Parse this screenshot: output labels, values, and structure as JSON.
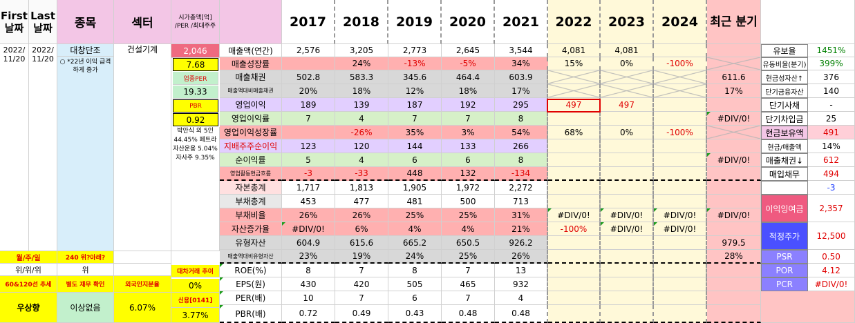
{
  "header": {
    "first": "First 날짜",
    "last": "Last 날짜",
    "item": "종목",
    "sector": "섹터",
    "cap_hdr": "시가총액[억] /PER /최대주주",
    "years": [
      "2017",
      "2018",
      "2019",
      "2020",
      "2021",
      "2022",
      "2023",
      "2024"
    ],
    "recent": "최근 분기"
  },
  "stock": {
    "first_date": "2022/ 11/20",
    "last_date": "2022/ 11/20",
    "name": "대창단조",
    "note": "○ *22년 이익 급격하게 증가",
    "sector": "건설기계",
    "market_cap": "2,046",
    "per": "7.68",
    "industry_per_label": "업종PER",
    "industry_per": "19.33",
    "pbr_label": "PBR",
    "pbr": "0.92",
    "holders": "박안식 외 5인 44.45% 페트라자산운용 5.04% 자사주 9.35%"
  },
  "rows": [
    {
      "label": "매출액(연간)",
      "cells": [
        "2,576",
        "3,205",
        "2,773",
        "2,645",
        "3,544",
        "4,081",
        "4,081",
        "",
        ""
      ]
    },
    {
      "label": "매출성장률",
      "cells": [
        "",
        "24%",
        "-13%",
        "-5%",
        "34%",
        "15%",
        "0%",
        "-100%",
        ""
      ]
    },
    {
      "label": "매출채권",
      "cells": [
        "502.8",
        "583.3",
        "345.6",
        "464.4",
        "603.9",
        "",
        "",
        "",
        "611.6"
      ]
    },
    {
      "label": "매출액대비매출채권",
      "cells": [
        "20%",
        "18%",
        "12%",
        "18%",
        "17%",
        "",
        "",
        "",
        "17%"
      ]
    },
    {
      "label": "영업이익",
      "cells": [
        "189",
        "139",
        "187",
        "192",
        "295",
        "497",
        "497",
        "",
        ""
      ]
    },
    {
      "label": "영업이익률",
      "cells": [
        "7",
        "4",
        "7",
        "7",
        "8",
        "",
        "",
        "",
        "#DIV/0!"
      ]
    },
    {
      "label": "영업이익성장률",
      "cells": [
        "",
        "-26%",
        "35%",
        "3%",
        "54%",
        "68%",
        "0%",
        "-100%",
        ""
      ]
    },
    {
      "label": "지배주주순이익",
      "cells": [
        "123",
        "120",
        "144",
        "133",
        "266",
        "",
        "",
        "",
        ""
      ]
    },
    {
      "label": "순이익률",
      "cells": [
        "5",
        "4",
        "6",
        "6",
        "8",
        "",
        "",
        "",
        "#DIV/0!"
      ]
    },
    {
      "label": "영업활동현금흐름",
      "cells": [
        "-3",
        "-33",
        "448",
        "132",
        "-134",
        "",
        "",
        "",
        ""
      ]
    },
    {
      "label": "자본총계",
      "cells": [
        "1,717",
        "1,813",
        "1,905",
        "1,972",
        "2,272",
        "",
        "",
        "",
        ""
      ]
    },
    {
      "label": "부채총계",
      "cells": [
        "453",
        "477",
        "481",
        "500",
        "713",
        "",
        "",
        "",
        ""
      ]
    },
    {
      "label": "부채비율",
      "cells": [
        "26%",
        "26%",
        "25%",
        "25%",
        "31%",
        "#DIV/0!",
        "#DIV/0!",
        "#DIV/0!",
        "#DIV/0!"
      ]
    },
    {
      "label": "자산증가율",
      "cells": [
        "#DIV/0!",
        "6%",
        "4%",
        "4%",
        "21%",
        "-100%",
        "#DIV/0!",
        "#DIV/0!",
        ""
      ]
    },
    {
      "label": "유형자산",
      "cells": [
        "604.9",
        "615.6",
        "665.2",
        "650.5",
        "926.2",
        "",
        "",
        "",
        "979.5"
      ]
    },
    {
      "label": "매출액대비유형자산",
      "cells": [
        "23%",
        "19%",
        "24%",
        "25%",
        "26%",
        "",
        "",
        "",
        "28%"
      ]
    },
    {
      "label": "ROE(%)",
      "cells": [
        "8",
        "7",
        "8",
        "7",
        "13",
        "",
        "",
        "",
        ""
      ]
    },
    {
      "label": "EPS(원)",
      "cells": [
        "430",
        "420",
        "505",
        "465",
        "932",
        "",
        "",
        "",
        ""
      ]
    },
    {
      "label": "PER(배)",
      "cells": [
        "10",
        "7",
        "6",
        "7",
        "4",
        "",
        "",
        "",
        ""
      ]
    },
    {
      "label": "PBR(배)",
      "cells": [
        "0.72",
        "0.49",
        "0.43",
        "0.48",
        "0.48",
        "",
        "",
        "",
        ""
      ]
    }
  ],
  "right": [
    {
      "label": "유보율",
      "value": "1451%"
    },
    {
      "label": "유동비율(분기)",
      "value": "399%"
    },
    {
      "label": "현금성자산↑",
      "value": "376"
    },
    {
      "label": "단기금융자산",
      "value": "140"
    },
    {
      "label": "단기사채",
      "value": "-"
    },
    {
      "label": "단기차입금",
      "value": "25"
    },
    {
      "label": "현금보유액",
      "value": "491"
    },
    {
      "label": "현금/매출액",
      "value": "14%"
    },
    {
      "label": "매출채권↓",
      "value": "612"
    },
    {
      "label": "매입채무",
      "value": "494"
    },
    {
      "label": "",
      "value": "-3"
    },
    {
      "label": "이익잉여금",
      "value": "2,357"
    },
    {
      "label": "적정주가",
      "value": "12,500"
    },
    {
      "label": "PSR",
      "value": "0.50"
    },
    {
      "label": "POR",
      "value": "4.12"
    },
    {
      "label": "PCR",
      "value": "#DIV/0!"
    }
  ],
  "bottom": {
    "a1": "월/주/일",
    "a2": "240 위?아래?",
    "b1": "위/위/위",
    "b2": "위",
    "c1": "60&120선 추세",
    "c2": "별도 재무 확인",
    "c3": "외국인지분율",
    "d1": "우상향",
    "d2": "이상없음",
    "d3": "6.07%",
    "trade_label": "대차거래 추이",
    "trade_value": "0%",
    "credit_label": "신용[0141]",
    "credit_value": "3.77%"
  },
  "colors": {
    "yellow": "#ffff00",
    "pink": "#f3c6e6",
    "lightblue": "#d8eefa",
    "cream": "#fff9d9",
    "highlight_border": "#e00000"
  }
}
